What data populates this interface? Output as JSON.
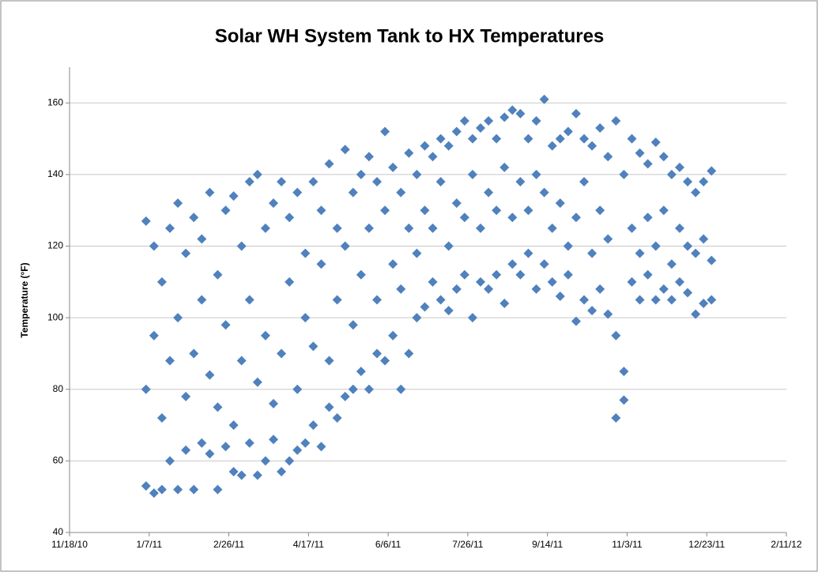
{
  "chart_data": {
    "type": "scatter",
    "title": "Solar WH System Tank to HX Temperatures",
    "y_label": "Temperature (°F)",
    "color": "#4f81bd",
    "grid": true,
    "xlim": [
      "11/18/10",
      "2/11/12"
    ],
    "xticks": [
      "11/18/10",
      "1/7/11",
      "2/26/11",
      "4/17/11",
      "6/6/11",
      "7/26/11",
      "9/14/11",
      "11/3/11",
      "12/23/11",
      "2/11/12"
    ],
    "ylim": [
      40,
      170
    ],
    "yticks": [
      40,
      60,
      80,
      100,
      120,
      140,
      160
    ],
    "x": [
      "1/5/11",
      "1/5/11",
      "1/5/11",
      "1/10/11",
      "1/10/11",
      "1/10/11",
      "1/15/11",
      "1/15/11",
      "1/15/11",
      "1/20/11",
      "1/20/11",
      "1/20/11",
      "1/25/11",
      "1/25/11",
      "1/25/11",
      "1/30/11",
      "1/30/11",
      "1/30/11",
      "2/4/11",
      "2/4/11",
      "2/4/11",
      "2/9/11",
      "2/9/11",
      "2/9/11",
      "2/14/11",
      "2/14/11",
      "2/14/11",
      "2/19/11",
      "2/19/11",
      "2/19/11",
      "2/24/11",
      "2/24/11",
      "2/24/11",
      "3/1/11",
      "3/1/11",
      "3/1/11",
      "3/6/11",
      "3/6/11",
      "3/6/11",
      "3/11/11",
      "3/11/11",
      "3/11/11",
      "3/16/11",
      "3/16/11",
      "3/16/11",
      "3/21/11",
      "3/21/11",
      "3/21/11",
      "3/26/11",
      "3/26/11",
      "3/26/11",
      "3/31/11",
      "3/31/11",
      "3/31/11",
      "4/5/11",
      "4/5/11",
      "4/5/11",
      "4/10/11",
      "4/10/11",
      "4/10/11",
      "4/15/11",
      "4/15/11",
      "4/15/11",
      "4/20/11",
      "4/20/11",
      "4/20/11",
      "4/25/11",
      "4/25/11",
      "4/25/11",
      "4/30/11",
      "4/30/11",
      "4/30/11",
      "5/5/11",
      "5/5/11",
      "5/5/11",
      "5/10/11",
      "5/10/11",
      "5/10/11",
      "5/15/11",
      "5/15/11",
      "5/15/11",
      "5/20/11",
      "5/20/11",
      "5/20/11",
      "5/25/11",
      "5/25/11",
      "5/25/11",
      "5/30/11",
      "5/30/11",
      "5/30/11",
      "6/4/11",
      "6/4/11",
      "6/4/11",
      "6/9/11",
      "6/9/11",
      "6/9/11",
      "6/14/11",
      "6/14/11",
      "6/14/11",
      "6/19/11",
      "6/19/11",
      "6/19/11",
      "6/24/11",
      "6/24/11",
      "6/24/11",
      "6/29/11",
      "6/29/11",
      "6/29/11",
      "7/4/11",
      "7/4/11",
      "7/4/11",
      "7/9/11",
      "7/9/11",
      "7/9/11",
      "7/14/11",
      "7/14/11",
      "7/14/11",
      "7/19/11",
      "7/19/11",
      "7/19/11",
      "7/24/11",
      "7/24/11",
      "7/24/11",
      "7/29/11",
      "7/29/11",
      "7/29/11",
      "8/3/11",
      "8/3/11",
      "8/3/11",
      "8/8/11",
      "8/8/11",
      "8/8/11",
      "8/13/11",
      "8/13/11",
      "8/13/11",
      "8/18/11",
      "8/18/11",
      "8/18/11",
      "8/23/11",
      "8/23/11",
      "8/23/11",
      "8/28/11",
      "8/28/11",
      "8/28/11",
      "9/2/11",
      "9/2/11",
      "9/2/11",
      "9/7/11",
      "9/7/11",
      "9/7/11",
      "9/12/11",
      "9/12/11",
      "9/12/11",
      "9/17/11",
      "9/17/11",
      "9/17/11",
      "9/22/11",
      "9/22/11",
      "9/22/11",
      "9/27/11",
      "9/27/11",
      "9/27/11",
      "10/2/11",
      "10/2/11",
      "10/2/11",
      "10/7/11",
      "10/7/11",
      "10/7/11",
      "10/12/11",
      "10/12/11",
      "10/12/11",
      "10/17/11",
      "10/17/11",
      "10/17/11",
      "10/22/11",
      "10/22/11",
      "10/22/11",
      "10/27/11",
      "10/27/11",
      "10/27/11",
      "11/1/11",
      "11/1/11",
      "11/1/11",
      "11/6/11",
      "11/6/11",
      "11/6/11",
      "11/11/11",
      "11/11/11",
      "11/11/11",
      "11/16/11",
      "11/16/11",
      "11/16/11",
      "11/21/11",
      "11/21/11",
      "11/21/11",
      "11/26/11",
      "11/26/11",
      "11/26/11",
      "12/1/11",
      "12/1/11",
      "12/1/11",
      "12/6/11",
      "12/6/11",
      "12/6/11",
      "12/11/11",
      "12/11/11",
      "12/11/11",
      "12/16/11",
      "12/16/11",
      "12/16/11",
      "12/21/11",
      "12/21/11",
      "12/21/11",
      "12/26/11",
      "12/26/11",
      "12/26/11"
    ],
    "values": [
      53,
      80,
      127,
      51,
      95,
      120,
      52,
      72,
      110,
      60,
      88,
      125,
      52,
      100,
      132,
      63,
      78,
      118,
      52,
      90,
      128,
      65,
      105,
      122,
      62,
      84,
      135,
      52,
      75,
      112,
      64,
      98,
      130,
      57,
      70,
      134,
      56,
      88,
      120,
      65,
      105,
      138,
      56,
      82,
      140,
      60,
      95,
      125,
      66,
      76,
      132,
      57,
      90,
      138,
      60,
      110,
      128,
      63,
      80,
      135,
      65,
      100,
      118,
      70,
      92,
      138,
      64,
      115,
      130,
      75,
      88,
      143,
      72,
      105,
      125,
      78,
      120,
      147,
      80,
      98,
      135,
      85,
      112,
      140,
      80,
      125,
      145,
      90,
      105,
      138,
      88,
      130,
      152,
      95,
      115,
      142,
      80,
      108,
      135,
      90,
      125,
      146,
      100,
      118,
      140,
      103,
      130,
      148,
      110,
      125,
      145,
      105,
      138,
      150,
      102,
      120,
      148,
      108,
      132,
      152,
      112,
      128,
      155,
      100,
      140,
      150,
      110,
      125,
      153,
      108,
      135,
      155,
      112,
      130,
      150,
      104,
      142,
      156,
      115,
      128,
      158,
      112,
      138,
      157,
      118,
      130,
      150,
      108,
      140,
      155,
      115,
      135,
      161,
      110,
      125,
      148,
      106,
      132,
      150,
      112,
      120,
      152,
      99,
      128,
      157,
      105,
      138,
      150,
      102,
      118,
      148,
      108,
      130,
      153,
      101,
      122,
      145,
      72,
      95,
      155,
      77,
      85,
      140,
      110,
      125,
      150,
      105,
      118,
      146,
      112,
      128,
      143,
      105,
      120,
      149,
      108,
      130,
      145,
      105,
      115,
      140,
      110,
      125,
      142,
      107,
      120,
      138,
      101,
      118,
      135,
      104,
      122,
      138,
      105,
      116,
      141
    ]
  }
}
